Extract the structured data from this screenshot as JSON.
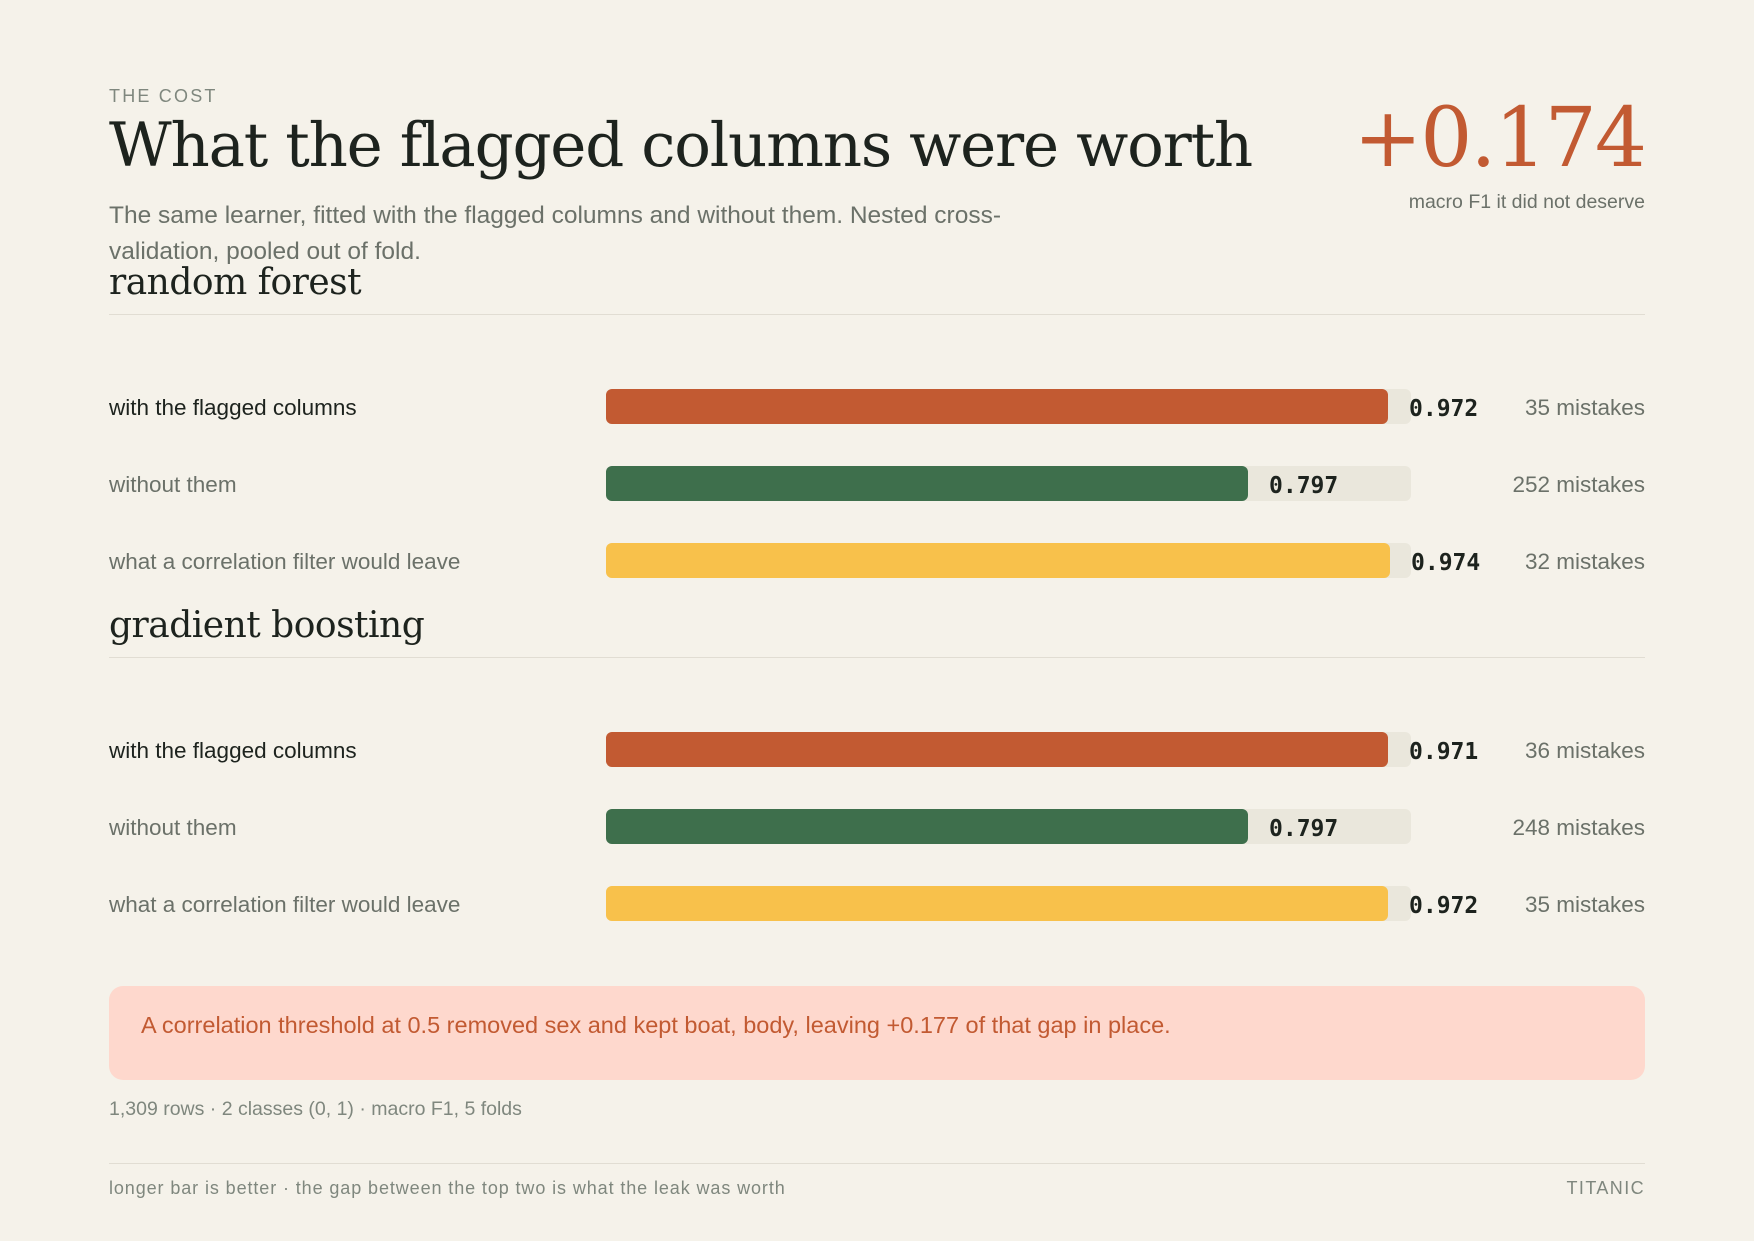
{
  "header": {
    "eyebrow": "THE COST",
    "title": "What the flagged columns were worth",
    "subtitle": "The same learner, fitted with the flagged columns and without them. Nested cross-validation, pooled out of fold.",
    "headline_value": "+0.174",
    "headline_caption": "macro F1 it did not deserve"
  },
  "colors": {
    "with": "#c25a32",
    "without": "#3e6f4c",
    "filter": "#f8c14b",
    "track": "#eae7dc"
  },
  "chart_data": [
    {
      "type": "bar",
      "orientation": "horizontal",
      "title": "random forest",
      "categories": [
        "with the flagged columns",
        "without them",
        "what a correlation filter would leave"
      ],
      "values": [
        0.972,
        0.797,
        0.974
      ],
      "labels": [
        "0.972",
        "0.797",
        "0.974"
      ],
      "annotations": [
        "35 mistakes",
        "252 mistakes",
        "32 mistakes"
      ],
      "xlim": [
        0,
        1
      ]
    },
    {
      "type": "bar",
      "orientation": "horizontal",
      "title": "gradient boosting",
      "categories": [
        "with the flagged columns",
        "without them",
        "what a correlation filter would leave"
      ],
      "values": [
        0.971,
        0.797,
        0.972
      ],
      "labels": [
        "0.971",
        "0.797",
        "0.972"
      ],
      "annotations": [
        "36 mistakes",
        "248 mistakes",
        "35 mistakes"
      ],
      "xlim": [
        0,
        1
      ]
    }
  ],
  "callout": "A correlation threshold at 0.5 removed sex and kept boat, body, leaving +0.177 of that gap in place.",
  "meta": "1,309 rows · 2 classes (0, 1) · macro F1, 5 folds",
  "footer": {
    "left": "longer bar is better · the gap between the top two is what the leak was worth",
    "right": "TITANIC"
  }
}
